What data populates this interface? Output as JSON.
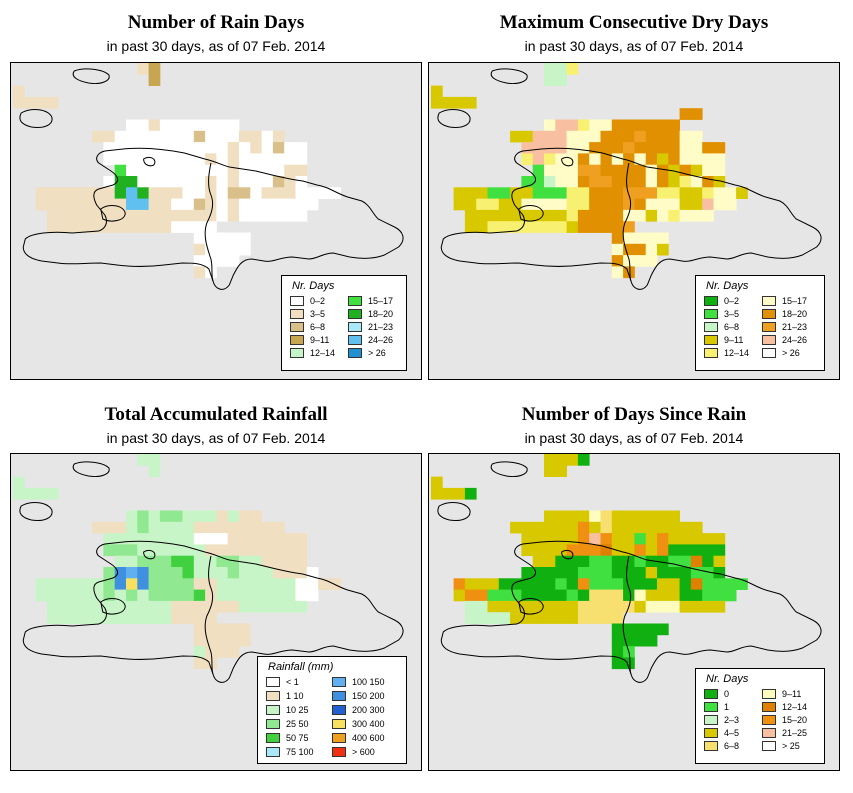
{
  "panels": [
    {
      "id": "rain-days",
      "title": "Number of Rain Days",
      "subtitle": "in past 30 days, as of  07 Feb. 2014",
      "legend": {
        "title": "Nr. Days",
        "items": [
          {
            "label": "0–2",
            "color": "#ffffff"
          },
          {
            "label": "3–5",
            "color": "#f0dfc0"
          },
          {
            "label": "6–8",
            "color": "#d9c08a"
          },
          {
            "label": "9–11",
            "color": "#c8a550"
          },
          {
            "label": "12–14",
            "color": "#c8f5c8"
          },
          {
            "label": "15–17",
            "color": "#40e040"
          },
          {
            "label": "18–20",
            "color": "#20b020"
          },
          {
            "label": "21–23",
            "color": "#a8e8f8"
          },
          {
            "label": "24–26",
            "color": "#60c0f0"
          },
          {
            "label": "> 26",
            "color": "#2090d0"
          }
        ]
      },
      "grid_colors": {
        "A": "#ffffff",
        "B": "#f0dfc0",
        "C": "#d9c08a",
        "D": "#c8a550",
        "E": "#c8f5c8",
        "F": "#40e040",
        "G": "#20b020",
        "H": "#a8e8f8",
        "I": "#60c0f0"
      },
      "grid": [
        "...........BD.......................",
        "............D.......................",
        "B...................................",
        "BBBB................................",
        "....................................",
        "..........AABAAAAAAA................",
        ".......BBAAAAAAACAAABBAB............",
        "........AAAAAAAAAAABABACAA..........",
        "........AAAAAAAAABABAAAAAA..........",
        ".........FAAAAAAAAABAAAABB..........",
        "........AGGAAAAAABABAAACBA..........",
        "..BBBBBBBGIGBBBAABACCABBBAAAA.......",
        "..BBBBBBBBIIBBAACBABAAAAAAA.........",
        "...BBBBBBBBBBBBBBBABAAAAAA..........",
        "...BBBBBBBBBBBAAAA..................",
        "................AAAAA...............",
        "................BAAAA...............",
        "................AAAA................",
        "................BA.................."
      ]
    },
    {
      "id": "max-dry-days",
      "title": "Maximum Consecutive Dry Days",
      "subtitle": "in past 30 days, as of  07 Feb. 2014",
      "legend": {
        "title": "Nr. Days",
        "items": [
          {
            "label": "0–2",
            "color": "#10b010"
          },
          {
            "label": "3–5",
            "color": "#40e040"
          },
          {
            "label": "6–8",
            "color": "#c8f5c8"
          },
          {
            "label": "9–11",
            "color": "#d8c800"
          },
          {
            "label": "12–14",
            "color": "#f8f070"
          },
          {
            "label": "15–17",
            "color": "#fffcc8"
          },
          {
            "label": "18–20",
            "color": "#e09000"
          },
          {
            "label": "21–23",
            "color": "#f0a020"
          },
          {
            "label": "24–26",
            "color": "#f8c0a0"
          },
          {
            "label": "> 26",
            "color": "#ffffff"
          }
        ]
      },
      "grid_colors": {
        "A": "#10b010",
        "B": "#40e040",
        "C": "#c8f5c8",
        "D": "#d8c800",
        "E": "#f8f070",
        "F": "#fffcc8",
        "G": "#e09000",
        "H": "#f0a020",
        "I": "#f8c0a0",
        "J": "#ffffff"
      },
      "grid": [
        "..........CCE.......................",
        "..........CC........................",
        "D...................................",
        "DDDD................................",
        "......................GG............",
        "..........FIIEFFGGGGGG..............",
        ".......DDIIIFFFGGGHGGGFF............",
        "........IIIIFFGGGHGGGGFFGG..........",
        "........EIEFFGFGFGFGDGFFFF..........",
        ".........BFFFHHGGGGFGDGDFF..........",
        "........BBCFFGHHGGGFGDEFGD..........",
        "..DDDBBDDBBBEEGGGHHHEEDDEFFD........",
        "..DDEEDDFFFFEEGGGHGFFFDDIFF.........",
        "...DDDDDDDDDEGGGGFFDFEFFF...........",
        "...DDEEEEEEEDGGGGH..................",
        "................GFFFF...............",
        "................FGGFD...............",
        "................GFFF................",
        "................FG.................."
      ]
    },
    {
      "id": "total-rainfall",
      "title": "Total Accumulated Rainfall",
      "subtitle": "in past 30 days, as of  07 Feb. 2014",
      "legend": {
        "title": "Rainfall (mm)",
        "items": [
          {
            "label": "< 1",
            "color": "#ffffff"
          },
          {
            "label": "1   10",
            "color": "#f0dfc0"
          },
          {
            "label": "10   25",
            "color": "#c8f5c8"
          },
          {
            "label": "25   50",
            "color": "#90e890"
          },
          {
            "label": "50   75",
            "color": "#40d040"
          },
          {
            "label": "75   100",
            "color": "#a8e8f8"
          },
          {
            "label": "100  150",
            "color": "#60b0f0"
          },
          {
            "label": "150  200",
            "color": "#4090e0"
          },
          {
            "label": "200  300",
            "color": "#2060d0"
          },
          {
            "label": "300  400",
            "color": "#f8e060"
          },
          {
            "label": "400  600",
            "color": "#f0a020"
          },
          {
            "label": "> 600",
            "color": "#f03010"
          }
        ]
      },
      "grid_colors": {
        "A": "#ffffff",
        "B": "#f0dfc0",
        "C": "#c8f5c8",
        "D": "#90e890",
        "E": "#40d040",
        "F": "#a8e8f8",
        "G": "#60b0f0",
        "H": "#4090e0",
        "J": "#f8e060"
      },
      "grid": [
        "...........CC.......................",
        "............C.......................",
        "C...................................",
        "CCCC................................",
        "....................................",
        "..........CDCDDCCCBCBB..............",
        ".......BBBCDCCCCBBBBBBBB............",
        "........CCCCCCCCAAABBBBBBB..........",
        "........DDDCCCCCCBBBBBBBBB..........",
        ".........CCDDDEECCDDCCBBBB..........",
        "........DHGHDDDECCCDCCCBBBA.........",
        "..CCCCCCDHJHDDDDBBCCCCCCCAABB.......",
        "..CCCCCCDCDCDDDDEBCCCCCCCAA.........",
        "...CCCCCCCCCCCBBBBBBCCCCCC..........",
        "...CCCCCCCCCCCBBBB..................",
        "................BBBBB...............",
        "................BBBBB...............",
        "................CBBB................",
        "................BB.................."
      ]
    },
    {
      "id": "days-since-rain",
      "title": "Number of Days Since Rain",
      "subtitle": "in past 30 days, as of  07 Feb. 2014",
      "legend": {
        "title": "Nr. Days",
        "items": [
          {
            "label": "0",
            "color": "#10b010"
          },
          {
            "label": "1",
            "color": "#40e040"
          },
          {
            "label": "2–3",
            "color": "#c8f5c8"
          },
          {
            "label": "4–5",
            "color": "#d8c800"
          },
          {
            "label": "6–8",
            "color": "#f8e070"
          },
          {
            "label": "9–11",
            "color": "#fffcc0"
          },
          {
            "label": "12–14",
            "color": "#e08000"
          },
          {
            "label": "15–20",
            "color": "#f09010"
          },
          {
            "label": "21–25",
            "color": "#f8c0a0"
          },
          {
            "label": "> 25",
            "color": "#ffffff"
          }
        ]
      },
      "grid_colors": {
        "A": "#10b010",
        "B": "#40e040",
        "C": "#c8f5c8",
        "D": "#d8c800",
        "E": "#f8e070",
        "F": "#fffcc0",
        "G": "#e08000",
        "H": "#f09010",
        "I": "#f8c0a0"
      },
      "grid": [
        "..........DDDA......................",
        "..........DD........................",
        "D...................................",
        "DDDA................................",
        "....................................",
        "..........DDDDFEDDDDDD..............",
        ".......DDDDDDHDEDDDDDDDD............",
        "........DDDDDHIHDDBDHDDDDD..........",
        "........DDDDHHHGDDHDHAAAAA..........",
        ".........DDAAABBAABAABBGAD..........",
        "........AAAAABBBAAADAAABBA..........",
        "..HDDDAAAAABAHBBBAAADDAGBBBB........",
        "..DHHBBBAAAABAEEEAFDDDAABBB.........",
        "...CCDDDDDDDDEEEEEDFFFDDDD..........",
        "...CCCCDDDDDDEEEE...................",
        "................AAAAA...............",
        "................AAAA................",
        "................AB..................",
        "................AA.................."
      ]
    }
  ]
}
